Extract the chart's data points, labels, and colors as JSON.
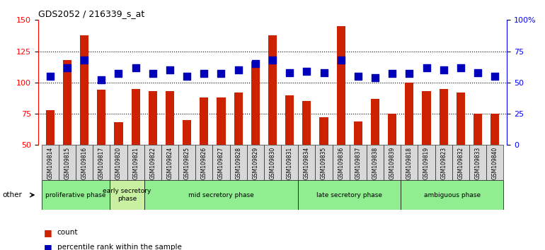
{
  "title": "GDS2052 / 216339_s_at",
  "samples": [
    "GSM109814",
    "GSM109815",
    "GSM109816",
    "GSM109817",
    "GSM109820",
    "GSM109821",
    "GSM109822",
    "GSM109824",
    "GSM109825",
    "GSM109826",
    "GSM109827",
    "GSM109828",
    "GSM109829",
    "GSM109830",
    "GSM109831",
    "GSM109834",
    "GSM109835",
    "GSM109836",
    "GSM109837",
    "GSM109838",
    "GSM109839",
    "GSM109818",
    "GSM109819",
    "GSM109823",
    "GSM109832",
    "GSM109833",
    "GSM109840"
  ],
  "counts": [
    78,
    118,
    138,
    94,
    68,
    95,
    93,
    93,
    70,
    88,
    88,
    92,
    117,
    138,
    90,
    85,
    72,
    145,
    69,
    87,
    75,
    100,
    93,
    95,
    92,
    75,
    75
  ],
  "percentiles": [
    55,
    62,
    68,
    52,
    57,
    62,
    57,
    60,
    55,
    57,
    57,
    60,
    65,
    68,
    58,
    59,
    58,
    68,
    55,
    54,
    57,
    57,
    62,
    60,
    62,
    58,
    55
  ],
  "phases": [
    {
      "label": "proliferative phase",
      "start": 0,
      "end": 3,
      "color": "#90EE90"
    },
    {
      "label": "early secretory\nphase",
      "start": 4,
      "end": 5,
      "color": "#c8f0a0"
    },
    {
      "label": "mid secretory phase",
      "start": 6,
      "end": 14,
      "color": "#90EE90"
    },
    {
      "label": "late secretory phase",
      "start": 15,
      "end": 20,
      "color": "#90EE90"
    },
    {
      "label": "ambiguous phase",
      "start": 21,
      "end": 26,
      "color": "#90EE90"
    }
  ],
  "ylim_left": [
    50,
    150
  ],
  "ylim_right": [
    0,
    100
  ],
  "yticks_left": [
    50,
    75,
    100,
    125,
    150
  ],
  "yticks_right": [
    0,
    25,
    50,
    75,
    100
  ],
  "ytick_labels_right": [
    "0",
    "25",
    "50",
    "75",
    "100%"
  ],
  "bar_color": "#CC2200",
  "dot_color": "#0000BB",
  "bar_width": 0.5,
  "dot_size": 55,
  "background_color": "#ffffff"
}
